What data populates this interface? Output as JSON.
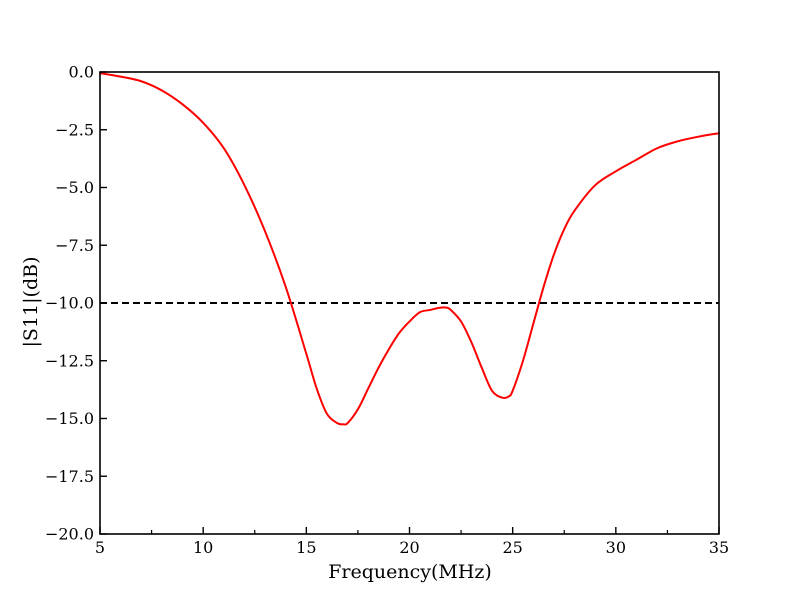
{
  "chart_data": {
    "type": "line",
    "title": "",
    "xlabel": "Frequency(MHz)",
    "ylabel": "|S11|(dB)",
    "xlim": [
      5,
      35
    ],
    "ylim": [
      -20,
      0
    ],
    "x_ticks": [
      5,
      10,
      15,
      20,
      25,
      30,
      35
    ],
    "x_tick_labels": [
      "5",
      "10",
      "15",
      "20",
      "25",
      "30",
      "35"
    ],
    "y_ticks": [
      0,
      -2.5,
      -5,
      -7.5,
      -10,
      -12.5,
      -15,
      -17.5,
      -20
    ],
    "y_tick_labels": [
      "0.0",
      "−2.5",
      "−5.0",
      "−7.5",
      "−10.0",
      "−12.5",
      "−15.0",
      "−17.5",
      "−20.0"
    ],
    "x_minor_ticks": [
      7.5,
      12.5,
      17.5,
      22.5,
      27.5,
      32.5
    ],
    "ticks_direction": "in",
    "grid": false,
    "legend": false,
    "reference_line": {
      "y": -10,
      "style": "dashed",
      "color": "#000000"
    },
    "series": [
      {
        "color": "#ff0000",
        "x": [
          5,
          6,
          7,
          8,
          9,
          10,
          11,
          12,
          13,
          14,
          15,
          15.5,
          16,
          16.5,
          16.8,
          17,
          17.5,
          18,
          18.5,
          19,
          19.5,
          20,
          20.5,
          21,
          21.5,
          21.8,
          22,
          22.5,
          23,
          23.5,
          24,
          24.5,
          24.8,
          25,
          25.5,
          26,
          26.5,
          27,
          27.5,
          28,
          29,
          30,
          31,
          32,
          33,
          34,
          35
        ],
        "y": [
          -0.05,
          -0.2,
          -0.4,
          -0.8,
          -1.4,
          -2.2,
          -3.3,
          -4.9,
          -6.9,
          -9.3,
          -12.2,
          -13.7,
          -14.8,
          -15.2,
          -15.25,
          -15.2,
          -14.6,
          -13.7,
          -12.8,
          -12.0,
          -11.3,
          -10.8,
          -10.4,
          -10.3,
          -10.2,
          -10.2,
          -10.3,
          -10.8,
          -11.7,
          -12.8,
          -13.8,
          -14.1,
          -14.05,
          -13.8,
          -12.5,
          -10.9,
          -9.3,
          -7.9,
          -6.8,
          -6.0,
          -4.9,
          -4.3,
          -3.8,
          -3.3,
          -3.0,
          -2.8,
          -2.65
        ]
      }
    ],
    "colors": {
      "curve": "#ff0000",
      "axes": "#000000",
      "reference": "#000000"
    }
  }
}
